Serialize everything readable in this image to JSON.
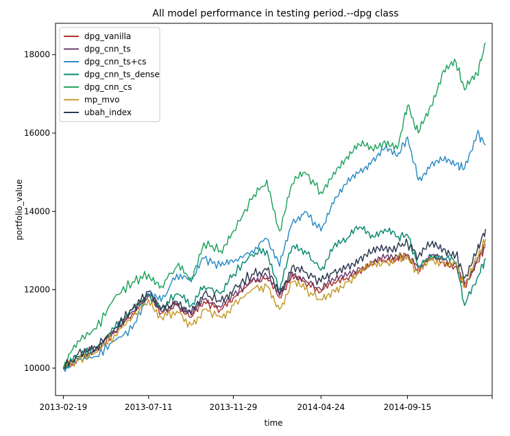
{
  "chart_data": {
    "type": "line",
    "title": "All model performance in testing period.--dpg class",
    "xlabel": "time",
    "ylabel": "portfolio_value",
    "xlim": [
      "2013-02-06",
      "2015-02-03"
    ],
    "ylim": [
      9300,
      18800
    ],
    "x_ticks": [
      "2013-02-19",
      "2013-07-11",
      "2013-11-29",
      "2014-04-24",
      "2014-09-15",
      "2015-02-03"
    ],
    "x_tick_labels": [
      "2013-02-19",
      "2013-07-11",
      "2013-11-29",
      "2014-04-24",
      "2014-09-15",
      ""
    ],
    "y_ticks": [
      10000,
      12000,
      14000,
      16000,
      18000
    ],
    "y_tick_labels": [
      "10000",
      "12000",
      "14000",
      "16000",
      "18000"
    ],
    "grid": false,
    "legend_position": "top-left",
    "x": [
      "2013-02-19",
      "2013-03-15",
      "2013-04-15",
      "2013-05-15",
      "2013-06-14",
      "2013-07-11",
      "2013-08-01",
      "2013-08-27",
      "2013-09-20",
      "2013-10-11",
      "2013-11-08",
      "2013-11-29",
      "2013-12-30",
      "2014-01-24",
      "2014-02-14",
      "2014-03-07",
      "2014-03-28",
      "2014-04-24",
      "2014-05-15",
      "2014-06-06",
      "2014-06-27",
      "2014-07-18",
      "2014-08-08",
      "2014-08-29",
      "2014-09-15",
      "2014-10-03",
      "2014-10-24",
      "2014-11-14",
      "2014-12-05",
      "2014-12-19",
      "2015-01-09",
      "2015-01-23"
    ],
    "series": [
      {
        "name": "dpg_vanilla",
        "color": "#b0302a",
        "values": [
          10000,
          10250,
          10450,
          10900,
          11400,
          11850,
          11400,
          11600,
          11300,
          11700,
          11500,
          11800,
          12200,
          12300,
          11800,
          12400,
          12200,
          11950,
          12200,
          12300,
          12500,
          12650,
          12750,
          12800,
          12850,
          12500,
          12800,
          12700,
          12600,
          12100,
          12700,
          13100
        ]
      },
      {
        "name": "dpg_cnn_ts",
        "color": "#6a3d6b",
        "values": [
          10000,
          10300,
          10500,
          10950,
          11450,
          11900,
          11450,
          11650,
          11350,
          11750,
          11550,
          11850,
          12250,
          12350,
          11850,
          12450,
          12250,
          12000,
          12250,
          12350,
          12550,
          12700,
          12800,
          12850,
          12900,
          12550,
          12850,
          12750,
          12650,
          12150,
          12750,
          13150
        ]
      },
      {
        "name": "dpg_cnn_ts+cs",
        "color": "#2b8cc4",
        "values": [
          10000,
          10200,
          10300,
          10700,
          11000,
          11900,
          11700,
          12400,
          12200,
          12800,
          12600,
          12700,
          13000,
          13300,
          12600,
          13700,
          14000,
          13500,
          14200,
          14700,
          15000,
          15300,
          15600,
          15400,
          15900,
          14800,
          15200,
          15300,
          15200,
          15100,
          16000,
          15700
        ]
      },
      {
        "name": "dpg_cnn_ts_dense",
        "color": "#0b8872",
        "values": [
          10000,
          10300,
          10500,
          11000,
          11500,
          11850,
          11500,
          11900,
          11600,
          12100,
          11900,
          12400,
          12900,
          13000,
          12000,
          13100,
          13000,
          12500,
          13100,
          13300,
          13600,
          13400,
          13550,
          13350,
          13400,
          12600,
          12900,
          12800,
          12700,
          11600,
          12300,
          12800
        ]
      },
      {
        "name": "dpg_cnn_cs",
        "color": "#22a45e",
        "values": [
          10000,
          10700,
          11000,
          11800,
          12200,
          12400,
          12100,
          12600,
          12300,
          13200,
          13000,
          13500,
          14300,
          14800,
          13500,
          14700,
          15000,
          14500,
          15000,
          15400,
          15700,
          15600,
          15800,
          15600,
          16700,
          16000,
          16700,
          17600,
          17800,
          17100,
          17500,
          18300
        ]
      },
      {
        "name": "mp_mvo",
        "color": "#c49a2b",
        "values": [
          10000,
          10200,
          10400,
          10850,
          11300,
          11750,
          11300,
          11450,
          11100,
          11500,
          11300,
          11600,
          12000,
          12100,
          11500,
          12200,
          12000,
          11750,
          12000,
          12200,
          12450,
          12600,
          12700,
          12800,
          12850,
          12400,
          12750,
          12700,
          12650,
          12050,
          12800,
          13300
        ]
      },
      {
        "name": "ubah_index",
        "color": "#2e3a52",
        "values": [
          10000,
          10350,
          10550,
          11000,
          11500,
          11950,
          11500,
          11700,
          11400,
          11900,
          11700,
          12000,
          12400,
          12500,
          11900,
          12600,
          12450,
          12200,
          12450,
          12600,
          12800,
          12950,
          13050,
          13100,
          13200,
          12850,
          13150,
          13050,
          12900,
          12300,
          13000,
          13550
        ]
      }
    ]
  }
}
